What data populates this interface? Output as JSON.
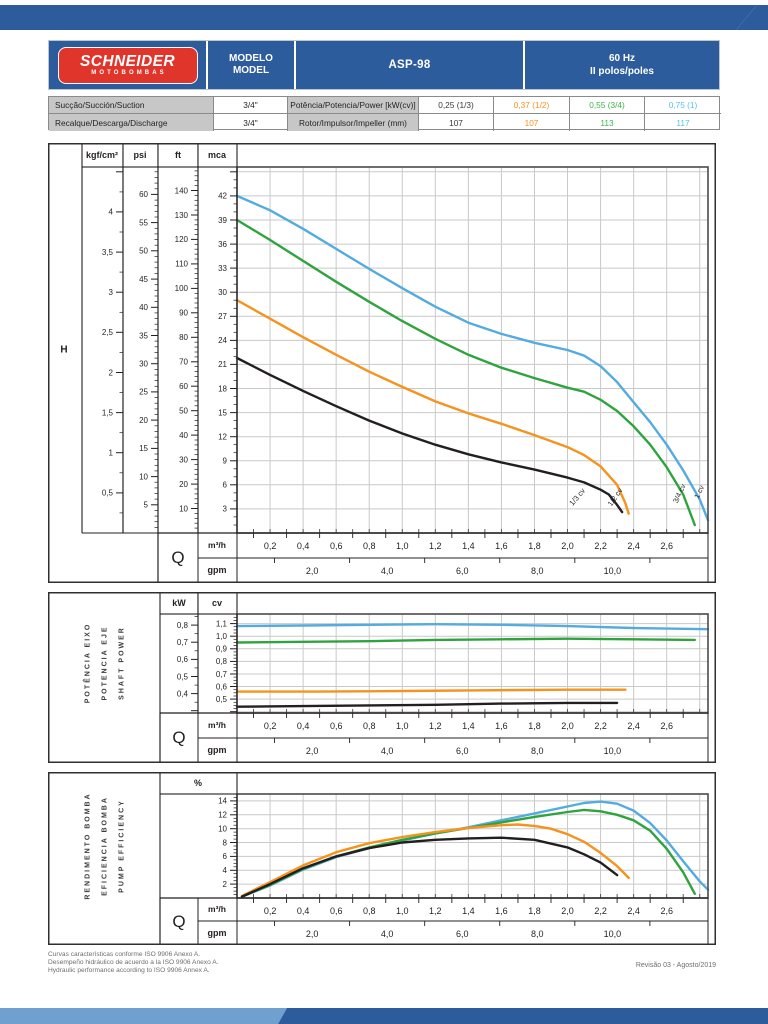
{
  "colors": {
    "brand_blue": "#2d5c9c",
    "band_light_blue": "#6fa0cf",
    "logo_red": "#e0352b",
    "table_label_gray": "#c7c7c7",
    "curve_black": "#231f20",
    "curve_orange": "#f6921e",
    "curve_green": "#2fa43e",
    "curve_blue": "#54abe0"
  },
  "header": {
    "logo_line1": "SCHNEIDER",
    "logo_line2": "MOTOBOMBAS",
    "model_label_line1": "MODELO",
    "model_label_line2": "MODEL",
    "model_value": "ASP-98",
    "freq_line1": "60 Hz",
    "freq_line2": "II polos/poles"
  },
  "spec_table": {
    "rows": [
      {
        "label1": "Sucção/Succión/Suction",
        "value1": "3/4\"",
        "label2": "Potência/Potencia/Power [kW(cv)]",
        "values": [
          {
            "text": "0,25 (1/3)",
            "color": "#3a3a3a"
          },
          {
            "text": "0,37 (1/2)",
            "color": "#f6921e"
          },
          {
            "text": "0,55 (3/4)",
            "color": "#3eb54b"
          },
          {
            "text": "0,75 (1)",
            "color": "#54c0ef"
          }
        ]
      },
      {
        "label1": "Recalque/Descarga/Discharge",
        "value1": "3/4\"",
        "label2": "Rotor/Impulsor/Impeller (mm)",
        "values": [
          {
            "text": "107",
            "color": "#3a3a3a"
          },
          {
            "text": "107",
            "color": "#f6921e"
          },
          {
            "text": "113",
            "color": "#3eb54b"
          },
          {
            "text": "117",
            "color": "#54c0ef"
          }
        ]
      }
    ]
  },
  "chart_data": [
    {
      "type": "line",
      "name": "head-vs-flow",
      "head_symbol": "H",
      "flow_symbol": "Q",
      "x_axis": {
        "unit": "m³/h",
        "min": 0,
        "max": 2.85,
        "label_min": 0.2,
        "label_max": 2.6,
        "label_step": 0.2,
        "decimals": 1
      },
      "x_axis2": {
        "unit": "gpm",
        "labels": [
          2,
          4,
          6,
          8,
          10
        ],
        "gpm_per_m3h": 4.4029,
        "decimals": 1
      },
      "y_unit_base": "mca",
      "y_range": [
        0,
        45.6
      ],
      "grid_step": 3,
      "y_axes": [
        {
          "unit": "kgf/cm²",
          "per_base": 0.1,
          "label_min": 0.5,
          "label_max": 4,
          "label_step": 0.5,
          "minor_step": 0.25
        },
        {
          "unit": "psi",
          "per_base": 1.42233,
          "label_min": 5,
          "label_max": 60,
          "label_step": 5,
          "minor_step": 1
        },
        {
          "unit": "ft",
          "per_base": 3.28084,
          "label_min": 10,
          "label_max": 140,
          "label_step": 10,
          "minor_step": 2
        },
        {
          "unit": "mca",
          "per_base": 1,
          "label_min": 3,
          "label_max": 42,
          "label_step": 3,
          "minor_step": 1
        }
      ],
      "series": [
        {
          "name": "1 cv",
          "color": "#54abe0",
          "points": [
            [
              0,
              42.0
            ],
            [
              0.2,
              40.2
            ],
            [
              0.4,
              37.9
            ],
            [
              0.6,
              35.4
            ],
            [
              0.8,
              32.9
            ],
            [
              1.0,
              30.5
            ],
            [
              1.2,
              28.2
            ],
            [
              1.4,
              26.2
            ],
            [
              1.6,
              24.8
            ],
            [
              1.8,
              23.7
            ],
            [
              2.0,
              22.8
            ],
            [
              2.1,
              22.1
            ],
            [
              2.2,
              20.8
            ],
            [
              2.3,
              18.8
            ],
            [
              2.4,
              16.3
            ],
            [
              2.5,
              13.8
            ],
            [
              2.6,
              11.0
            ],
            [
              2.7,
              7.8
            ],
            [
              2.8,
              4.2
            ],
            [
              2.85,
              1.6
            ]
          ]
        },
        {
          "name": "3/4 cv",
          "color": "#2fa43e",
          "points": [
            [
              0,
              39.0
            ],
            [
              0.2,
              36.5
            ],
            [
              0.4,
              33.9
            ],
            [
              0.6,
              31.3
            ],
            [
              0.8,
              28.8
            ],
            [
              1.0,
              26.4
            ],
            [
              1.2,
              24.2
            ],
            [
              1.4,
              22.2
            ],
            [
              1.6,
              20.6
            ],
            [
              1.8,
              19.3
            ],
            [
              2.0,
              18.1
            ],
            [
              2.1,
              17.6
            ],
            [
              2.2,
              16.6
            ],
            [
              2.3,
              15.2
            ],
            [
              2.4,
              13.3
            ],
            [
              2.5,
              11.0
            ],
            [
              2.6,
              8.2
            ],
            [
              2.7,
              4.8
            ],
            [
              2.77,
              1.0
            ]
          ]
        },
        {
          "name": "1/2 cv",
          "color": "#f6921e",
          "points": [
            [
              0,
              29.0
            ],
            [
              0.2,
              26.7
            ],
            [
              0.4,
              24.4
            ],
            [
              0.6,
              22.2
            ],
            [
              0.8,
              20.1
            ],
            [
              1.0,
              18.2
            ],
            [
              1.2,
              16.4
            ],
            [
              1.4,
              14.9
            ],
            [
              1.6,
              13.6
            ],
            [
              1.8,
              12.2
            ],
            [
              2.0,
              10.7
            ],
            [
              2.1,
              9.7
            ],
            [
              2.2,
              8.3
            ],
            [
              2.3,
              6.0
            ],
            [
              2.35,
              3.7
            ],
            [
              2.37,
              2.4
            ]
          ]
        },
        {
          "name": "1/3 cv",
          "color": "#231f20",
          "points": [
            [
              0,
              21.8
            ],
            [
              0.2,
              19.7
            ],
            [
              0.4,
              17.7
            ],
            [
              0.6,
              15.8
            ],
            [
              0.8,
              14.0
            ],
            [
              1.0,
              12.4
            ],
            [
              1.2,
              11.0
            ],
            [
              1.4,
              9.8
            ],
            [
              1.6,
              8.8
            ],
            [
              1.8,
              7.9
            ],
            [
              2.0,
              6.9
            ],
            [
              2.1,
              6.3
            ],
            [
              2.2,
              5.4
            ],
            [
              2.25,
              4.8
            ],
            [
              2.3,
              3.5
            ],
            [
              2.33,
              2.6
            ]
          ]
        }
      ],
      "curve_labels": [
        {
          "text": "1/3 cv",
          "x": 2.07,
          "y": 4.3,
          "angle": -50
        },
        {
          "text": "1/2 cv",
          "x": 2.3,
          "y": 4.3,
          "angle": -55
        },
        {
          "text": "3/4 cv",
          "x": 2.69,
          "y": 4.8,
          "angle": -65
        },
        {
          "text": "1 cv",
          "x": 2.81,
          "y": 5.0,
          "angle": -65
        }
      ]
    },
    {
      "type": "line",
      "name": "shaft-power",
      "title_lines": [
        "POTÊNCIA EIXO",
        "POTENCIA EJE",
        "SHAFT POWER"
      ],
      "flow_symbol": "Q",
      "x_axis": {
        "unit": "m³/h",
        "min": 0,
        "max": 2.85,
        "label_min": 0.2,
        "label_max": 2.6,
        "label_step": 0.2,
        "decimals": 1
      },
      "x_axis2": {
        "unit": "gpm",
        "labels": [
          2,
          4,
          6,
          8,
          10
        ],
        "gpm_per_m3h": 4.4029,
        "decimals": 1
      },
      "y_unit_base": "cv",
      "y_range": [
        0.39,
        1.176
      ],
      "grid_values": [
        0.4,
        0.5,
        0.6,
        0.7,
        0.8,
        0.9,
        1.0,
        1.1
      ],
      "y_axes": [
        {
          "unit": "kW",
          "per_base": 0.7355,
          "label_min": 0.4,
          "label_max": 0.8,
          "label_step": 0.1,
          "minor_step": 0.05,
          "decimals": 1
        },
        {
          "unit": "cv",
          "per_base": 1,
          "label_min": 0.5,
          "label_max": 1.1,
          "label_step": 0.1,
          "minor_step": 0.025,
          "decimals": 1
        }
      ],
      "series": [
        {
          "name": "1 cv",
          "color": "#54abe0",
          "points": [
            [
              0,
              1.08
            ],
            [
              0.4,
              1.085
            ],
            [
              0.8,
              1.09
            ],
            [
              1.2,
              1.095
            ],
            [
              1.6,
              1.09
            ],
            [
              2.0,
              1.08
            ],
            [
              2.4,
              1.065
            ],
            [
              2.85,
              1.055
            ]
          ]
        },
        {
          "name": "3/4 cv",
          "color": "#2fa43e",
          "points": [
            [
              0,
              0.95
            ],
            [
              0.4,
              0.955
            ],
            [
              0.8,
              0.96
            ],
            [
              1.2,
              0.97
            ],
            [
              1.6,
              0.975
            ],
            [
              2.0,
              0.98
            ],
            [
              2.4,
              0.975
            ],
            [
              2.77,
              0.97
            ]
          ]
        },
        {
          "name": "1/2 cv",
          "color": "#f6921e",
          "points": [
            [
              0,
              0.56
            ],
            [
              0.5,
              0.56
            ],
            [
              1.0,
              0.565
            ],
            [
              1.5,
              0.57
            ],
            [
              2.0,
              0.575
            ],
            [
              2.35,
              0.575
            ]
          ]
        },
        {
          "name": "1/3 cv",
          "color": "#231f20",
          "points": [
            [
              0,
              0.44
            ],
            [
              0.4,
              0.445
            ],
            [
              0.8,
              0.45
            ],
            [
              1.2,
              0.455
            ],
            [
              1.6,
              0.465
            ],
            [
              2.0,
              0.47
            ],
            [
              2.3,
              0.47
            ]
          ]
        }
      ]
    },
    {
      "type": "line",
      "name": "pump-efficiency",
      "title_lines": [
        "RENDIMENTO BOMBA",
        "EFICIENCIA BOMBA",
        "PUMP EFFICIENCY"
      ],
      "flow_symbol": "Q",
      "x_axis": {
        "unit": "m³/h",
        "min": 0,
        "max": 2.85,
        "label_min": 0.2,
        "label_max": 2.6,
        "label_step": 0.2,
        "decimals": 1
      },
      "x_axis2": {
        "unit": "gpm",
        "labels": [
          2,
          4,
          6,
          8,
          10
        ],
        "gpm_per_m3h": 4.4029,
        "decimals": 1
      },
      "y_unit_base": "%",
      "y_range": [
        0,
        15.0
      ],
      "grid_step": 2,
      "y_axes": [
        {
          "unit": "%",
          "per_base": 1,
          "label_min": 2,
          "label_max": 14,
          "label_step": 2,
          "minor_step": 0.5,
          "decimals": 0
        }
      ],
      "series": [
        {
          "name": "1 cv",
          "color": "#54abe0",
          "points": [
            [
              0.03,
              0.2
            ],
            [
              0.2,
              1.8
            ],
            [
              0.4,
              4.1
            ],
            [
              0.6,
              5.9
            ],
            [
              0.8,
              7.2
            ],
            [
              1.0,
              8.3
            ],
            [
              1.2,
              9.3
            ],
            [
              1.4,
              10.2
            ],
            [
              1.6,
              11.2
            ],
            [
              1.8,
              12.2
            ],
            [
              2.0,
              13.2
            ],
            [
              2.1,
              13.7
            ],
            [
              2.2,
              13.9
            ],
            [
              2.3,
              13.6
            ],
            [
              2.4,
              12.6
            ],
            [
              2.5,
              10.8
            ],
            [
              2.6,
              8.3
            ],
            [
              2.7,
              5.3
            ],
            [
              2.8,
              2.4
            ],
            [
              2.85,
              1.2
            ]
          ]
        },
        {
          "name": "3/4 cv",
          "color": "#2fa43e",
          "points": [
            [
              0.03,
              0.2
            ],
            [
              0.2,
              1.9
            ],
            [
              0.4,
              4.2
            ],
            [
              0.6,
              6.0
            ],
            [
              0.8,
              7.3
            ],
            [
              1.0,
              8.4
            ],
            [
              1.2,
              9.3
            ],
            [
              1.4,
              10.1
            ],
            [
              1.6,
              10.9
            ],
            [
              1.8,
              11.7
            ],
            [
              2.0,
              12.4
            ],
            [
              2.1,
              12.7
            ],
            [
              2.2,
              12.5
            ],
            [
              2.3,
              12.0
            ],
            [
              2.4,
              11.2
            ],
            [
              2.5,
              9.7
            ],
            [
              2.6,
              7.1
            ],
            [
              2.7,
              3.7
            ],
            [
              2.77,
              0.6
            ]
          ]
        },
        {
          "name": "1/2 cv",
          "color": "#f6921e",
          "points": [
            [
              0.03,
              0.3
            ],
            [
              0.2,
              2.3
            ],
            [
              0.4,
              4.7
            ],
            [
              0.6,
              6.6
            ],
            [
              0.8,
              7.9
            ],
            [
              1.0,
              8.8
            ],
            [
              1.2,
              9.5
            ],
            [
              1.4,
              10.1
            ],
            [
              1.6,
              10.5
            ],
            [
              1.7,
              10.6
            ],
            [
              1.8,
              10.4
            ],
            [
              1.9,
              10.0
            ],
            [
              2.0,
              9.2
            ],
            [
              2.1,
              8.1
            ],
            [
              2.2,
              6.5
            ],
            [
              2.3,
              4.6
            ],
            [
              2.37,
              2.9
            ]
          ]
        },
        {
          "name": "1/3 cv",
          "color": "#231f20",
          "points": [
            [
              0.03,
              0.2
            ],
            [
              0.2,
              2.0
            ],
            [
              0.4,
              4.3
            ],
            [
              0.6,
              6.0
            ],
            [
              0.8,
              7.2
            ],
            [
              1.0,
              8.0
            ],
            [
              1.2,
              8.4
            ],
            [
              1.4,
              8.6
            ],
            [
              1.6,
              8.7
            ],
            [
              1.8,
              8.4
            ],
            [
              2.0,
              7.3
            ],
            [
              2.1,
              6.3
            ],
            [
              2.2,
              5.1
            ],
            [
              2.3,
              3.3
            ]
          ]
        }
      ]
    }
  ],
  "footer": {
    "lines": [
      "Curvas características conforme ISO 9906 Anexo A.",
      "Desempeño hidráulico de acuerdo a la ISO 9906 Anexo A.",
      "Hydraulic performance according to ISO 9906 Annex A."
    ],
    "revision": "Revisão 03 - Agosto/2019"
  }
}
